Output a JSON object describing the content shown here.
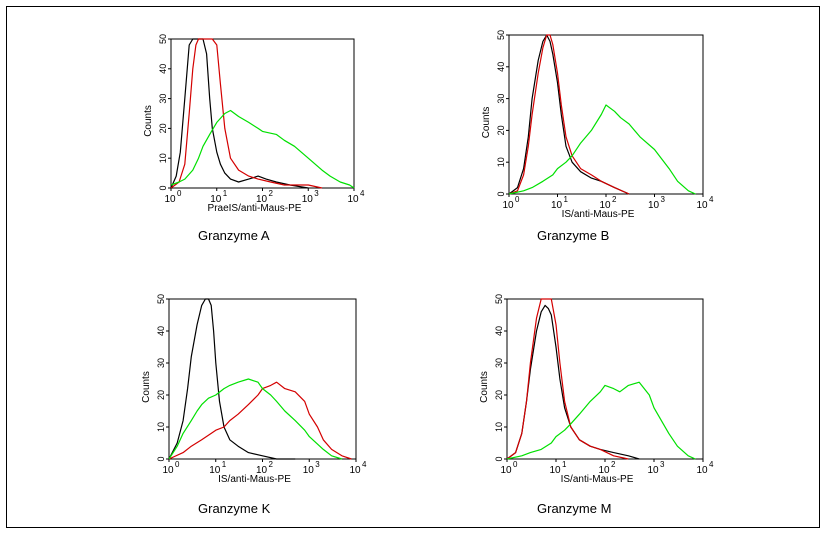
{
  "figure": {
    "colors": {
      "black": "#000000",
      "red": "#d40000",
      "green": "#00e000"
    }
  },
  "chart_data": [
    {
      "type": "line",
      "title": "Granzyme A",
      "xlabel": "PraeIS/anti-Maus-PE",
      "ylabel": "Counts",
      "x_scale": "log",
      "xlim": [
        1,
        10000
      ],
      "ylim": [
        0,
        50
      ],
      "x_ticks": [
        "10",
        "10",
        "10",
        "10",
        "10"
      ],
      "x_tick_exponents": [
        "0",
        "1",
        "2",
        "3",
        "4"
      ],
      "y_ticks": [
        "0",
        "10",
        "20",
        "30",
        "40",
        "50"
      ],
      "grid": false,
      "legend": "none",
      "series": [
        {
          "color": "black",
          "x": [
            1,
            1.3,
            1.6,
            2,
            2.5,
            3,
            3.5,
            4,
            5,
            6,
            7,
            8,
            10,
            12,
            15,
            20,
            30,
            50,
            80,
            120,
            200,
            400,
            1000
          ],
          "y": [
            0,
            4,
            12,
            30,
            48,
            50,
            50,
            50,
            50,
            45,
            30,
            20,
            12,
            8,
            5,
            3,
            2,
            3,
            4,
            3,
            2,
            1,
            0
          ]
        },
        {
          "color": "red",
          "x": [
            1,
            1.5,
            2,
            2.5,
            3,
            3.5,
            4,
            5,
            6,
            8,
            10,
            12,
            15,
            20,
            30,
            50,
            80,
            150,
            300,
            1000,
            2000
          ],
          "y": [
            0,
            2,
            8,
            25,
            40,
            48,
            50,
            50,
            50,
            50,
            48,
            35,
            20,
            10,
            6,
            4,
            3,
            2,
            1,
            1,
            0
          ]
        },
        {
          "color": "green",
          "x": [
            1,
            1.5,
            2,
            3,
            4,
            5,
            7,
            10,
            15,
            20,
            30,
            50,
            80,
            100,
            200,
            300,
            500,
            1000,
            2000,
            3000,
            5000,
            8000,
            10000
          ],
          "y": [
            1,
            2,
            3,
            6,
            10,
            14,
            18,
            22,
            25,
            26,
            24,
            22,
            20,
            19,
            18,
            16,
            14,
            10,
            6,
            4,
            2,
            1,
            0
          ]
        }
      ],
      "caption": "Granzyme A"
    },
    {
      "type": "line",
      "title": "Granzyme B",
      "xlabel": "IS/anti-Maus-PE",
      "ylabel": "Counts",
      "x_scale": "log",
      "xlim": [
        1,
        10000
      ],
      "ylim": [
        0,
        50
      ],
      "x_ticks": [
        "10",
        "10",
        "10",
        "10",
        "10"
      ],
      "x_tick_exponents": [
        "0",
        "1",
        "2",
        "3",
        "4"
      ],
      "y_ticks": [
        "0",
        "10",
        "20",
        "30",
        "40",
        "50"
      ],
      "grid": false,
      "legend": "none",
      "series": [
        {
          "color": "black",
          "x": [
            1,
            1.5,
            2,
            2.5,
            3,
            4,
            5,
            6,
            7,
            8,
            10,
            12,
            15,
            20,
            30,
            50,
            80,
            150,
            300
          ],
          "y": [
            0,
            2,
            8,
            18,
            30,
            42,
            48,
            50,
            48,
            44,
            35,
            25,
            15,
            10,
            7,
            5,
            4,
            2,
            0
          ]
        },
        {
          "color": "red",
          "x": [
            1,
            1.5,
            2,
            2.5,
            3,
            4,
            5,
            6,
            7,
            8,
            10,
            12,
            15,
            20,
            30,
            50,
            80,
            150,
            300
          ],
          "y": [
            0,
            1,
            6,
            15,
            25,
            38,
            46,
            50,
            50,
            47,
            38,
            28,
            18,
            12,
            8,
            6,
            4,
            2,
            0
          ]
        },
        {
          "color": "green",
          "x": [
            1,
            2,
            3,
            5,
            8,
            10,
            15,
            20,
            30,
            50,
            80,
            100,
            150,
            200,
            300,
            500,
            1000,
            2000,
            3000,
            5000,
            7000
          ],
          "y": [
            0,
            1,
            2,
            4,
            6,
            8,
            10,
            12,
            16,
            20,
            25,
            28,
            26,
            24,
            22,
            18,
            14,
            8,
            4,
            1,
            0
          ]
        }
      ],
      "caption": "Granzyme B"
    },
    {
      "type": "line",
      "title": "Granzyme K",
      "xlabel": "IS/anti-Maus-PE",
      "ylabel": "Counts",
      "x_scale": "log",
      "xlim": [
        1,
        10000
      ],
      "ylim": [
        0,
        50
      ],
      "x_ticks": [
        "10",
        "10",
        "10",
        "10",
        "10"
      ],
      "x_tick_exponents": [
        "0",
        "1",
        "2",
        "3",
        "4"
      ],
      "y_ticks": [
        "0",
        "10",
        "20",
        "30",
        "40",
        "50"
      ],
      "grid": false,
      "legend": "none",
      "series": [
        {
          "color": "black",
          "x": [
            1,
            1.5,
            2,
            2.5,
            3,
            4,
            5,
            6,
            7,
            8,
            9,
            10,
            12,
            15,
            20,
            30,
            50,
            100,
            200,
            500
          ],
          "y": [
            0,
            5,
            12,
            22,
            32,
            42,
            48,
            50,
            50,
            48,
            40,
            30,
            18,
            10,
            6,
            4,
            2,
            1,
            0,
            0
          ]
        },
        {
          "color": "red",
          "x": [
            1,
            2,
            3,
            5,
            8,
            10,
            15,
            20,
            30,
            50,
            80,
            100,
            150,
            200,
            300,
            500,
            800,
            1000,
            1500,
            2000,
            3000,
            5000,
            8000
          ],
          "y": [
            0,
            2,
            4,
            6,
            8,
            9,
            10,
            12,
            14,
            17,
            20,
            22,
            23,
            24,
            22,
            21,
            18,
            14,
            10,
            6,
            3,
            1,
            0
          ]
        },
        {
          "color": "green",
          "x": [
            1,
            1.5,
            2,
            3,
            4,
            5,
            7,
            10,
            15,
            20,
            30,
            50,
            80,
            100,
            150,
            200,
            300,
            500,
            800,
            1000,
            2000,
            3000,
            5000
          ],
          "y": [
            0,
            4,
            8,
            12,
            15,
            17,
            19,
            20,
            22,
            23,
            24,
            25,
            24,
            22,
            20,
            18,
            15,
            12,
            9,
            7,
            3,
            1,
            0
          ]
        }
      ],
      "caption": "Granzyme K"
    },
    {
      "type": "line",
      "title": "Granzyme M",
      "xlabel": "IS/anti-Maus-PE",
      "ylabel": "Counts",
      "x_scale": "log",
      "xlim": [
        1,
        10000
      ],
      "ylim": [
        0,
        50
      ],
      "x_ticks": [
        "10",
        "10",
        "10",
        "10",
        "10"
      ],
      "x_tick_exponents": [
        "0",
        "1",
        "2",
        "3",
        "4"
      ],
      "y_ticks": [
        "0",
        "10",
        "20",
        "30",
        "40",
        "50"
      ],
      "grid": false,
      "legend": "none",
      "series": [
        {
          "color": "black",
          "x": [
            1,
            1.5,
            2,
            2.5,
            3,
            4,
            5,
            6,
            7,
            8,
            10,
            12,
            15,
            20,
            30,
            50,
            80,
            150,
            300,
            500
          ],
          "y": [
            0,
            2,
            8,
            18,
            28,
            40,
            46,
            48,
            47,
            45,
            35,
            25,
            16,
            10,
            6,
            4,
            3,
            2,
            1,
            0
          ]
        },
        {
          "color": "red",
          "x": [
            1,
            1.5,
            2,
            2.5,
            3,
            4,
            5,
            6,
            7,
            8,
            10,
            12,
            15,
            20,
            30,
            50,
            80,
            150,
            300
          ],
          "y": [
            0,
            2,
            8,
            18,
            30,
            44,
            50,
            50,
            50,
            50,
            42,
            30,
            18,
            10,
            6,
            4,
            3,
            1,
            0
          ]
        },
        {
          "color": "green",
          "x": [
            1,
            2,
            3,
            5,
            8,
            10,
            15,
            20,
            30,
            50,
            80,
            100,
            150,
            200,
            300,
            500,
            800,
            1000,
            2000,
            3000,
            5000,
            7000
          ],
          "y": [
            0,
            1,
            2,
            3,
            5,
            7,
            9,
            11,
            14,
            18,
            21,
            23,
            22,
            21,
            23,
            24,
            20,
            16,
            8,
            4,
            1,
            0
          ]
        }
      ],
      "caption": "Granzyme M"
    }
  ]
}
